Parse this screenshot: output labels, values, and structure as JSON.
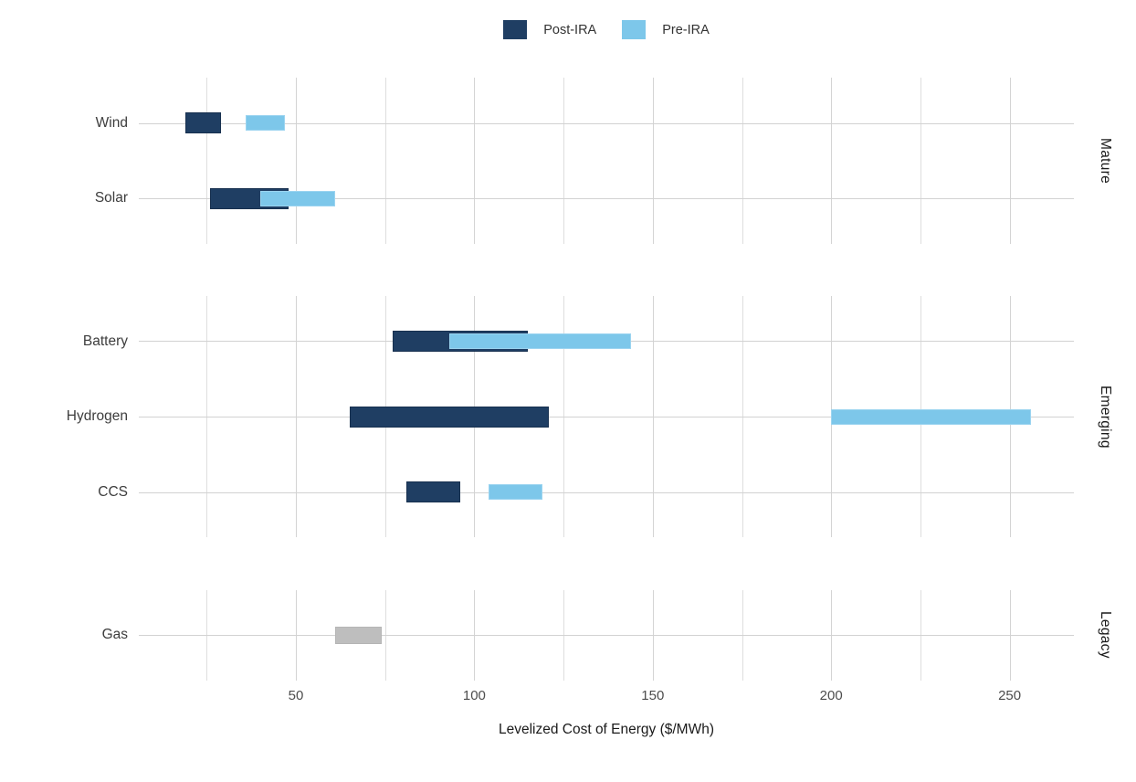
{
  "chart_data": {
    "type": "bar",
    "variant": "horizontal-range-bars-faceted",
    "title": "",
    "xlabel": "Levelized Cost of Energy ($/MWh)",
    "xlim": [
      6,
      268
    ],
    "x_major_ticks": [
      50,
      100,
      150,
      200,
      250
    ],
    "x_minor_gridlines": [
      25,
      75,
      125,
      175,
      225
    ],
    "grid": true,
    "legend_position": "top-center",
    "legend_items": [
      {
        "label": "Post-IRA",
        "series": "post_ira"
      },
      {
        "label": "Pre-IRA",
        "series": "pre_ira"
      }
    ],
    "series_colors": {
      "post_ira": "#1f3e63",
      "pre_ira": "#7dc7ea",
      "baseline": "#bebebe"
    },
    "facets": [
      {
        "name": "Mature",
        "rows": [
          {
            "category": "Wind",
            "series": {
              "post_ira": [
                19,
                29
              ],
              "pre_ira": [
                36,
                47
              ]
            }
          },
          {
            "category": "Solar",
            "series": {
              "post_ira": [
                26,
                48
              ],
              "pre_ira": [
                40,
                61
              ]
            }
          }
        ]
      },
      {
        "name": "Emerging",
        "rows": [
          {
            "category": "Battery",
            "series": {
              "post_ira": [
                77,
                115
              ],
              "pre_ira": [
                93,
                144
              ]
            }
          },
          {
            "category": "Hydrogen",
            "series": {
              "post_ira": [
                65,
                121
              ],
              "pre_ira": [
                200,
                256
              ]
            }
          },
          {
            "category": "CCS",
            "series": {
              "post_ira": [
                81,
                96
              ],
              "pre_ira": [
                104,
                119
              ]
            }
          }
        ]
      },
      {
        "name": "Legacy",
        "rows": [
          {
            "category": "Gas",
            "series": {
              "baseline": [
                61,
                74
              ]
            }
          }
        ]
      }
    ]
  }
}
